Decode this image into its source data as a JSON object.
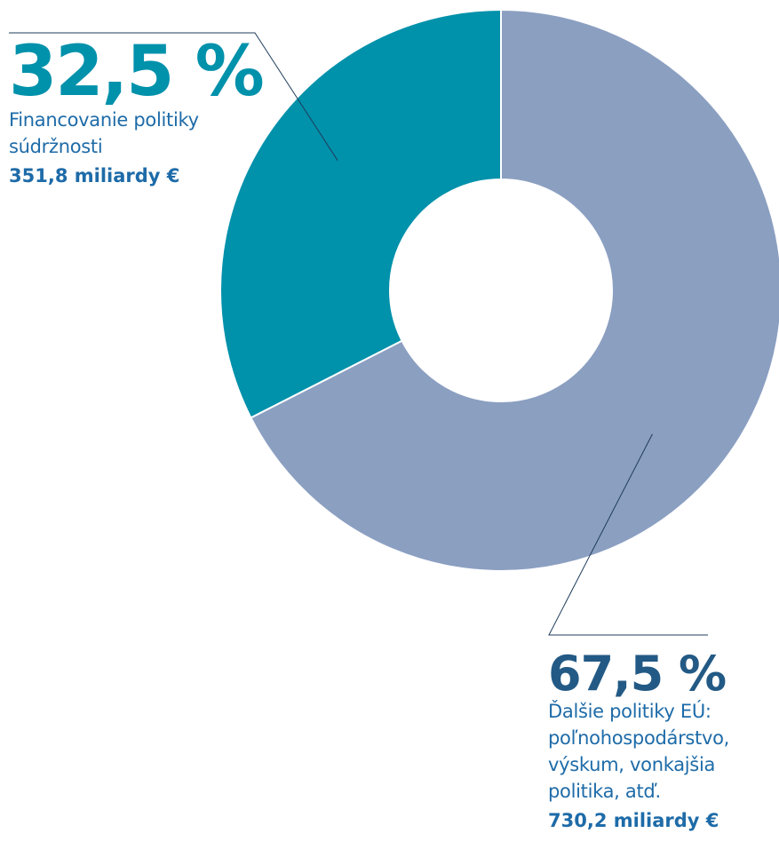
{
  "colors": {
    "slice_cohesion": "#0091AB",
    "slice_other": "#8B9FC1",
    "text_cohesion_pct": "#0091AB",
    "text_other_pct": "#235A85",
    "text_body": "#1E6BA8",
    "leader_line": "#1F3D5C",
    "slice_border": "#ffffff"
  },
  "chart_data": {
    "type": "pie",
    "style": "donut",
    "start": "top",
    "direction": "counterclockwise",
    "slices": [
      {
        "percent_label": "32,5 %",
        "value": 32.5,
        "description": "Financovanie politiky súdržnosti",
        "amount": "351,8 miliardy €",
        "color": "#0091AB"
      },
      {
        "percent_label": "67,5 %",
        "value": 67.5,
        "description": "Ďalšie politiky EÚ: poľnohospodárstvo, výskum, vonkajšia politika, atď.",
        "amount": "730,2 miliardy €",
        "color": "#8B9FC1"
      }
    ]
  }
}
